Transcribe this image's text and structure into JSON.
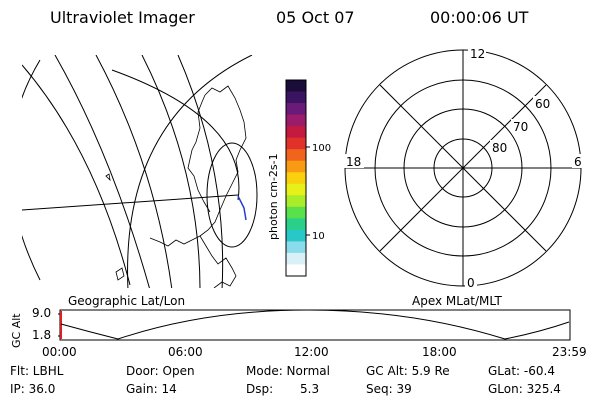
{
  "header": {
    "instrument": "Ultraviolet Imager",
    "date": "05 Oct 07",
    "time": "00:00:06 UT"
  },
  "colorbar": {
    "unit": "photon cm-2s-1",
    "ticks": [
      "100",
      "10"
    ],
    "colors": [
      "#1a0d3a",
      "#3a1460",
      "#6a1a78",
      "#9a1c6a",
      "#c41a40",
      "#e0322a",
      "#f0641c",
      "#f89a14",
      "#f8d00e",
      "#e8f01a",
      "#a8ec2a",
      "#5ae04a",
      "#2ad08a",
      "#28c8c8",
      "#8adcec",
      "#d8f0f6",
      "#ffffff"
    ]
  },
  "polar": {
    "mlt_labels": [
      "12",
      "18",
      "6",
      "0"
    ],
    "lat_labels": [
      "60",
      "70",
      "80"
    ]
  },
  "map": {
    "left_label": "Geographic Lat/Lon",
    "right_label": "Apex MLat/MLT"
  },
  "orbit": {
    "ylabel": "GC Alt",
    "ytop": "9.0",
    "ybottom": "1.8",
    "xticks": [
      "00:00",
      "06:00",
      "12:00",
      "18:00",
      "23:59"
    ]
  },
  "status": {
    "row1": {
      "filter_label": "Flt: LBHL",
      "door_label": "Door: Open",
      "mode_label": "Mode: Normal",
      "gcalt_label": "GC Alt: 5.9 Re",
      "glat_label": "GLat: -60.4"
    },
    "row2": {
      "ip_label": "IP: 36.0",
      "gain_label": "Gain: 14",
      "dsp_label": "Dsp:",
      "dsp_value": "5.3",
      "seq_label": "Seq: 39",
      "glon_label": "GLon: 325.4"
    }
  }
}
